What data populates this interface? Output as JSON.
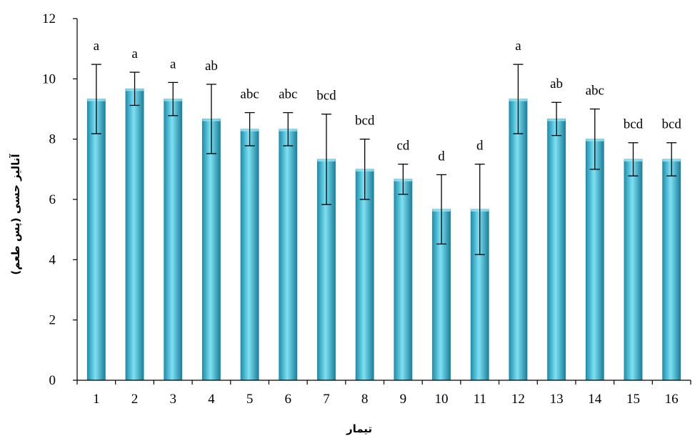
{
  "chart_data": {
    "type": "bar",
    "xlabel": "تیمار",
    "ylabel": "آنالیز حسی (پس طعم)",
    "categories": [
      "1",
      "2",
      "3",
      "4",
      "5",
      "6",
      "7",
      "8",
      "9",
      "10",
      "11",
      "12",
      "13",
      "14",
      "15",
      "16"
    ],
    "values": [
      9.33,
      9.67,
      9.33,
      8.67,
      8.33,
      8.33,
      7.33,
      7.0,
      6.67,
      5.67,
      5.67,
      9.33,
      8.67,
      8.0,
      7.33,
      7.33
    ],
    "error": [
      1.15,
      0.55,
      0.55,
      1.15,
      0.55,
      0.55,
      1.5,
      1.0,
      0.5,
      1.15,
      1.5,
      1.15,
      0.55,
      1.0,
      0.55,
      0.55
    ],
    "significance_labels": [
      "a",
      "a",
      "a",
      "ab",
      "abc",
      "abc",
      "bcd",
      "bcd",
      "cd",
      "d",
      "d",
      "a",
      "ab",
      "abc",
      "bcd",
      "bcd"
    ],
    "y_ticks": [
      "0",
      "2",
      "4",
      "6",
      "8",
      "10",
      "12"
    ],
    "ylim": [
      0,
      12
    ],
    "grid": false,
    "legend": "none",
    "colors": {
      "bar_light": "#7fe0f2",
      "bar_mid": "#2fb0cf",
      "bar_dark": "#1a7f9b",
      "axis": "#000000"
    }
  }
}
